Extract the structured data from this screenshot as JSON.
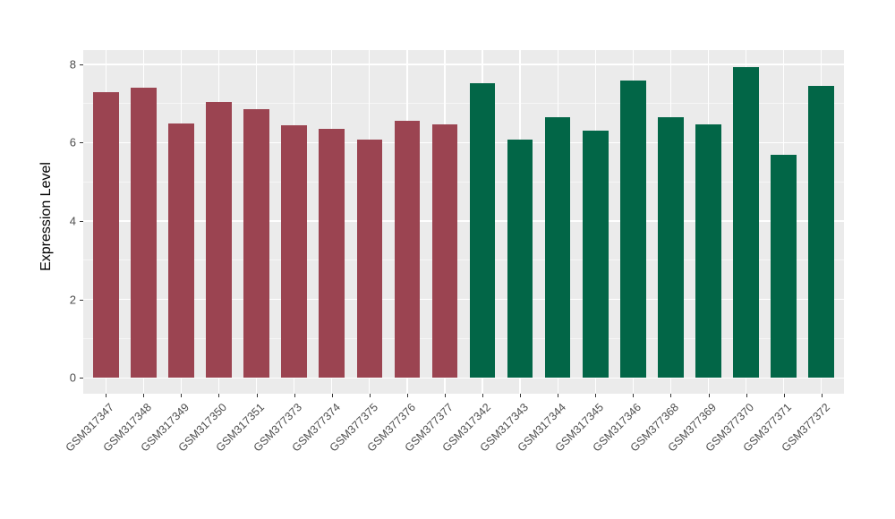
{
  "chart_data": {
    "type": "bar",
    "title": "",
    "xlabel": "",
    "ylabel": "Expression Level",
    "ylim": [
      0,
      8
    ],
    "yticks": [
      0,
      2,
      4,
      6,
      8
    ],
    "yminor_gridlines": [
      1,
      3,
      5,
      7
    ],
    "legend_position": "none",
    "grid": "on",
    "panel_background": "#EBEBEB",
    "gridline_color": "#FFFFFF",
    "axis_text_color": "#4D4D4D",
    "x_tick_rotation_deg": 45,
    "group_colors": {
      "left-group": "#9B4451",
      "right-group": "#026647"
    },
    "categories": [
      "GSM317347",
      "GSM317348",
      "GSM317349",
      "GSM317350",
      "GSM317351",
      "GSM377373",
      "GSM377374",
      "GSM377375",
      "GSM377376",
      "GSM377377",
      "GSM317342",
      "GSM317343",
      "GSM317344",
      "GSM317345",
      "GSM317346",
      "GSM377368",
      "GSM377369",
      "GSM377370",
      "GSM377371",
      "GSM377372"
    ],
    "values": [
      7.29,
      7.41,
      6.5,
      7.03,
      6.86,
      6.44,
      6.35,
      6.07,
      6.55,
      6.47,
      7.52,
      6.08,
      6.64,
      6.31,
      7.59,
      6.64,
      6.46,
      7.93,
      5.68,
      7.44
    ],
    "bar_colors": [
      "#9B4451",
      "#9B4451",
      "#9B4451",
      "#9B4451",
      "#9B4451",
      "#9B4451",
      "#9B4451",
      "#9B4451",
      "#9B4451",
      "#9B4451",
      "#026647",
      "#026647",
      "#026647",
      "#026647",
      "#026647",
      "#026647",
      "#026647",
      "#026647",
      "#026647",
      "#026647"
    ]
  }
}
